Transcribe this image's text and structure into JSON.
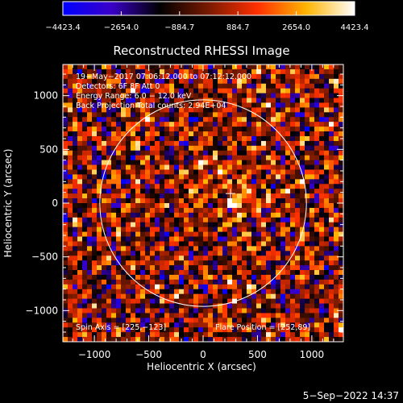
{
  "colorbar": {
    "tick_labels": [
      "−4423.4",
      "−2654.0",
      "−884.7",
      "884.7",
      "2654.0",
      "4423.4"
    ],
    "tick_values": [
      -4423.4,
      -2654.0,
      -884.7,
      884.7,
      2654.0,
      4423.4
    ],
    "range": [
      -4423.4,
      4423.4
    ],
    "stops": [
      "#0000ff",
      "#3a00c8",
      "#000000",
      "#7a1a00",
      "#ff3000",
      "#ffb400",
      "#ffffff"
    ]
  },
  "chart_data": {
    "type": "heatmap",
    "title": "Reconstructed RHESSI Image",
    "xlabel": "Heliocentric X (arcsec)",
    "ylabel": "Heliocentric Y (arcsec)",
    "xlim": [
      -1290,
      1290
    ],
    "ylim": [
      -1290,
      1290
    ],
    "x_ticks": [
      -1000,
      -500,
      0,
      500,
      1000
    ],
    "y_ticks": [
      -1000,
      -500,
      0,
      500,
      1000
    ],
    "x_tick_labels": [
      "−1000",
      "−500",
      "0",
      "500",
      "1000"
    ],
    "y_tick_labels": [
      "−1000",
      "−500",
      "0",
      "500",
      "1000"
    ],
    "solar_limb_radius": 950,
    "solar_limb_color": "#ffffff",
    "flare_position": [
      252,
      89
    ],
    "annotations": [
      "19−May−2017 07:06:12.000 to 07:12:12.000",
      "Detectors: 6F 8F  Att 0",
      "Energy Range: 6.0 − 12.0 keV",
      "Back Projection    Total counts: 2.94E+04"
    ],
    "spin_axis_label": "Spin Axis = [225,−123]",
    "flare_position_label": "Flare Position = [252,89]"
  },
  "footer": {
    "timestamp": "5−Sep−2022 14:37"
  }
}
